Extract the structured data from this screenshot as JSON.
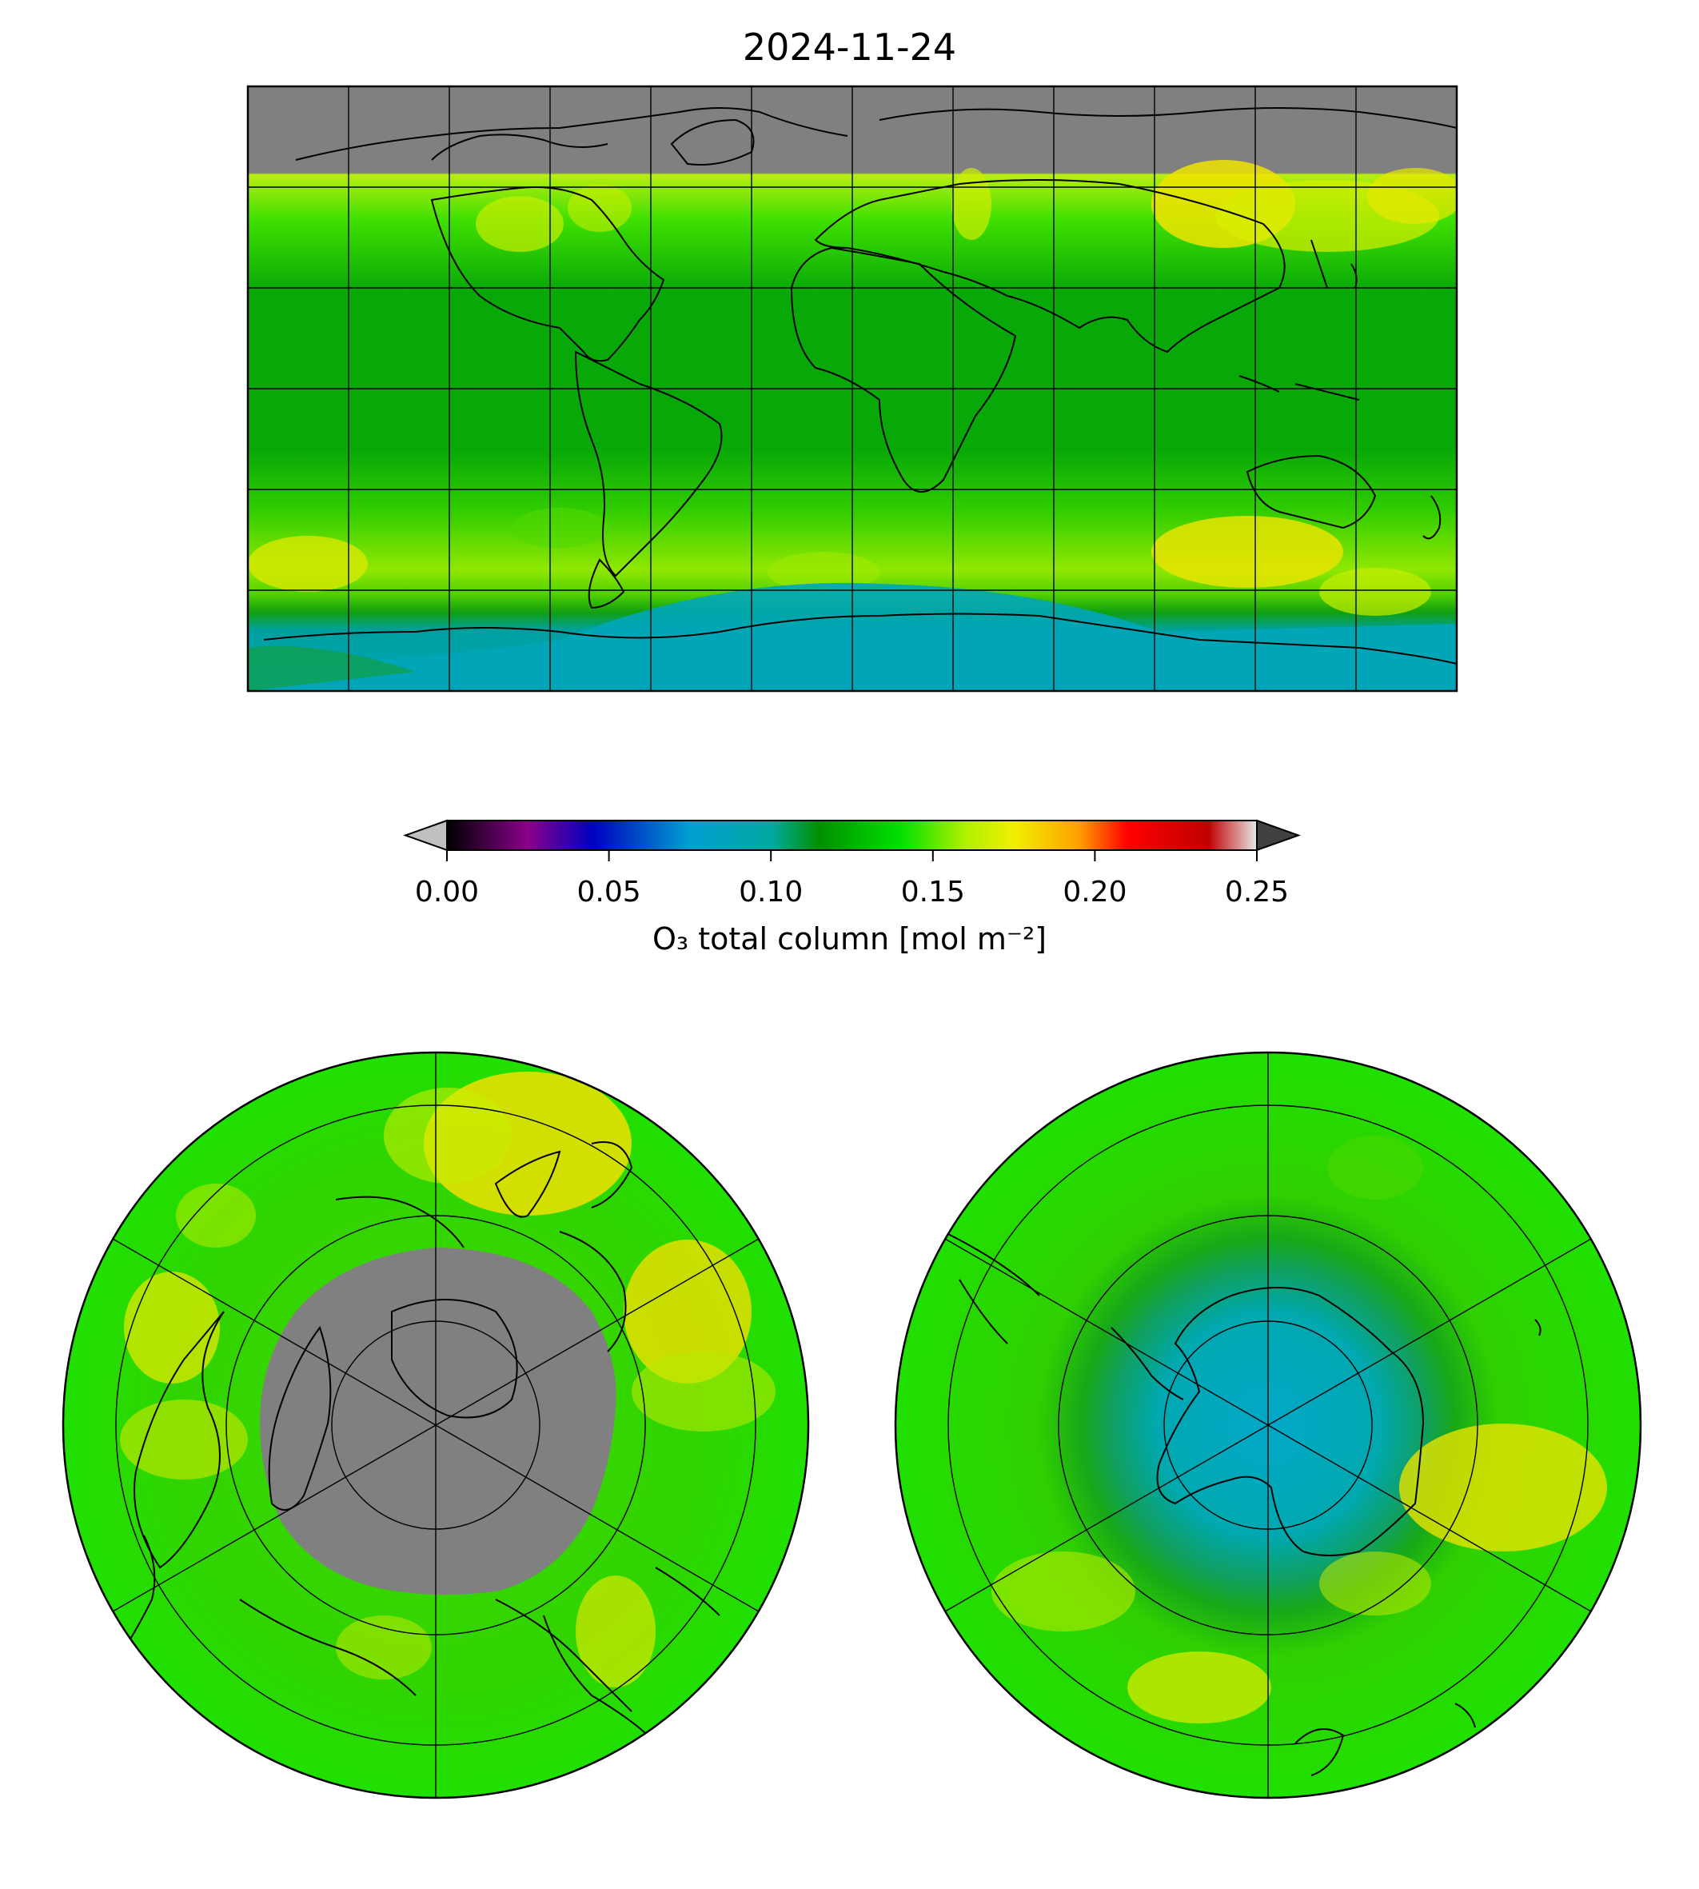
{
  "title": "2024-11-24",
  "colorbar": {
    "label": "O₃ total column [mol m⁻²]",
    "ticks": [
      "0.00",
      "0.05",
      "0.10",
      "0.15",
      "0.20",
      "0.25"
    ],
    "range": [
      0.0,
      0.25
    ],
    "extend": "both",
    "stops": [
      {
        "v": 0.0,
        "c": "#000000"
      },
      {
        "v": 0.025,
        "c": "#8a008a"
      },
      {
        "v": 0.045,
        "c": "#0000c0"
      },
      {
        "v": 0.075,
        "c": "#00a0d0"
      },
      {
        "v": 0.1,
        "c": "#00a8a0"
      },
      {
        "v": 0.115,
        "c": "#009000"
      },
      {
        "v": 0.14,
        "c": "#00e000"
      },
      {
        "v": 0.16,
        "c": "#b0f000"
      },
      {
        "v": 0.175,
        "c": "#f0f000"
      },
      {
        "v": 0.195,
        "c": "#ffa000"
      },
      {
        "v": 0.21,
        "c": "#ff0000"
      },
      {
        "v": 0.235,
        "c": "#c00000"
      },
      {
        "v": 0.25,
        "c": "#e8e8e8"
      }
    ],
    "under_color": "#c0c0c0",
    "over_color": "#404040"
  },
  "maps": {
    "global": {
      "projection": "plate-carree",
      "no_data_color": "#808080",
      "gridlines": true
    },
    "north_polar": {
      "projection": "north-polar-stereographic",
      "no_data_color": "#808080",
      "gridlines": true
    },
    "south_polar": {
      "projection": "south-polar-stereographic",
      "no_data_color": "#808080",
      "gridlines": true
    }
  }
}
